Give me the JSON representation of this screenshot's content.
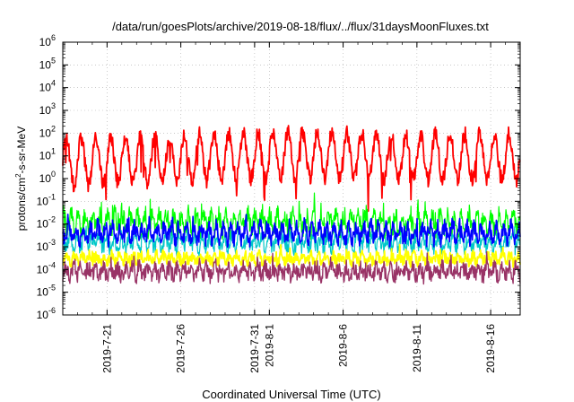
{
  "chart_data": {
    "type": "line",
    "title": "/data/run/goesPlots/archive/2019-08-18/flux/../flux/31daysMoonFluxes.txt",
    "xlabel": "Coordinated Universal Time (UTC)",
    "ylabel_parts": [
      "protons/cm",
      "2",
      "-s-sr-MeV"
    ],
    "yscale": "log",
    "ylim_exp": [
      -6,
      6
    ],
    "ytick_exponents": [
      -6,
      -5,
      -4,
      -3,
      -2,
      -1,
      0,
      1,
      2,
      3,
      4,
      5,
      6
    ],
    "ytick_base": "10",
    "x_range_days": [
      "2019-07-18",
      "2019-08-18"
    ],
    "xticks": [
      {
        "date": "2019-07-21",
        "label": "2019-7-21"
      },
      {
        "date": "2019-07-26",
        "label": "2019-7-26"
      },
      {
        "date": "2019-07-31",
        "label": "2019-7-31"
      },
      {
        "date": "2019-08-01",
        "label": "2019-8-1"
      },
      {
        "date": "2019-08-06",
        "label": "2019-8-6"
      },
      {
        "date": "2019-08-11",
        "label": "2019-8-11"
      },
      {
        "date": "2019-08-16",
        "label": "2019-8-16"
      }
    ],
    "grid": true,
    "series": [
      {
        "color": "#ff0000",
        "base": 3.0,
        "amp": 1.0,
        "noise": 0.35,
        "period": 1.0,
        "trend": [
          [
            0,
            0.25
          ],
          [
            0.45,
            0.55
          ],
          [
            0.6,
            0.6
          ],
          [
            0.75,
            0.45
          ],
          [
            1,
            0.5
          ]
        ],
        "dips": true,
        "width": 1.8
      },
      {
        "color": "#00ff00",
        "base": 0.012,
        "amp": 0.35,
        "noise": 0.45,
        "period": 0.5,
        "trend": [
          [
            0,
            0
          ],
          [
            1,
            0
          ]
        ],
        "dips": false,
        "width": 1.2
      },
      {
        "color": "#00c8c8",
        "base": 0.0015,
        "amp": 0.25,
        "noise": 0.35,
        "period": 0.5,
        "trend": [
          [
            0,
            0
          ],
          [
            1,
            0
          ]
        ],
        "dips": false,
        "width": 1.2
      },
      {
        "color": "#0000ff",
        "base": 0.004,
        "amp": 0.3,
        "noise": 0.35,
        "period": 0.5,
        "trend": [
          [
            0,
            0
          ],
          [
            1,
            0
          ]
        ],
        "dips": false,
        "width": 1.6
      },
      {
        "color": "#ffff00",
        "base": 0.0003,
        "amp": 0.15,
        "noise": 0.25,
        "period": 0.5,
        "trend": [
          [
            0,
            0
          ],
          [
            1,
            0
          ]
        ],
        "dips": false,
        "width": 1.8
      },
      {
        "color": "#993366",
        "base": 8e-05,
        "amp": 0.2,
        "noise": 0.35,
        "period": 0.5,
        "trend": [
          [
            0,
            0
          ],
          [
            1,
            0
          ]
        ],
        "dips": false,
        "width": 1.4
      }
    ]
  }
}
